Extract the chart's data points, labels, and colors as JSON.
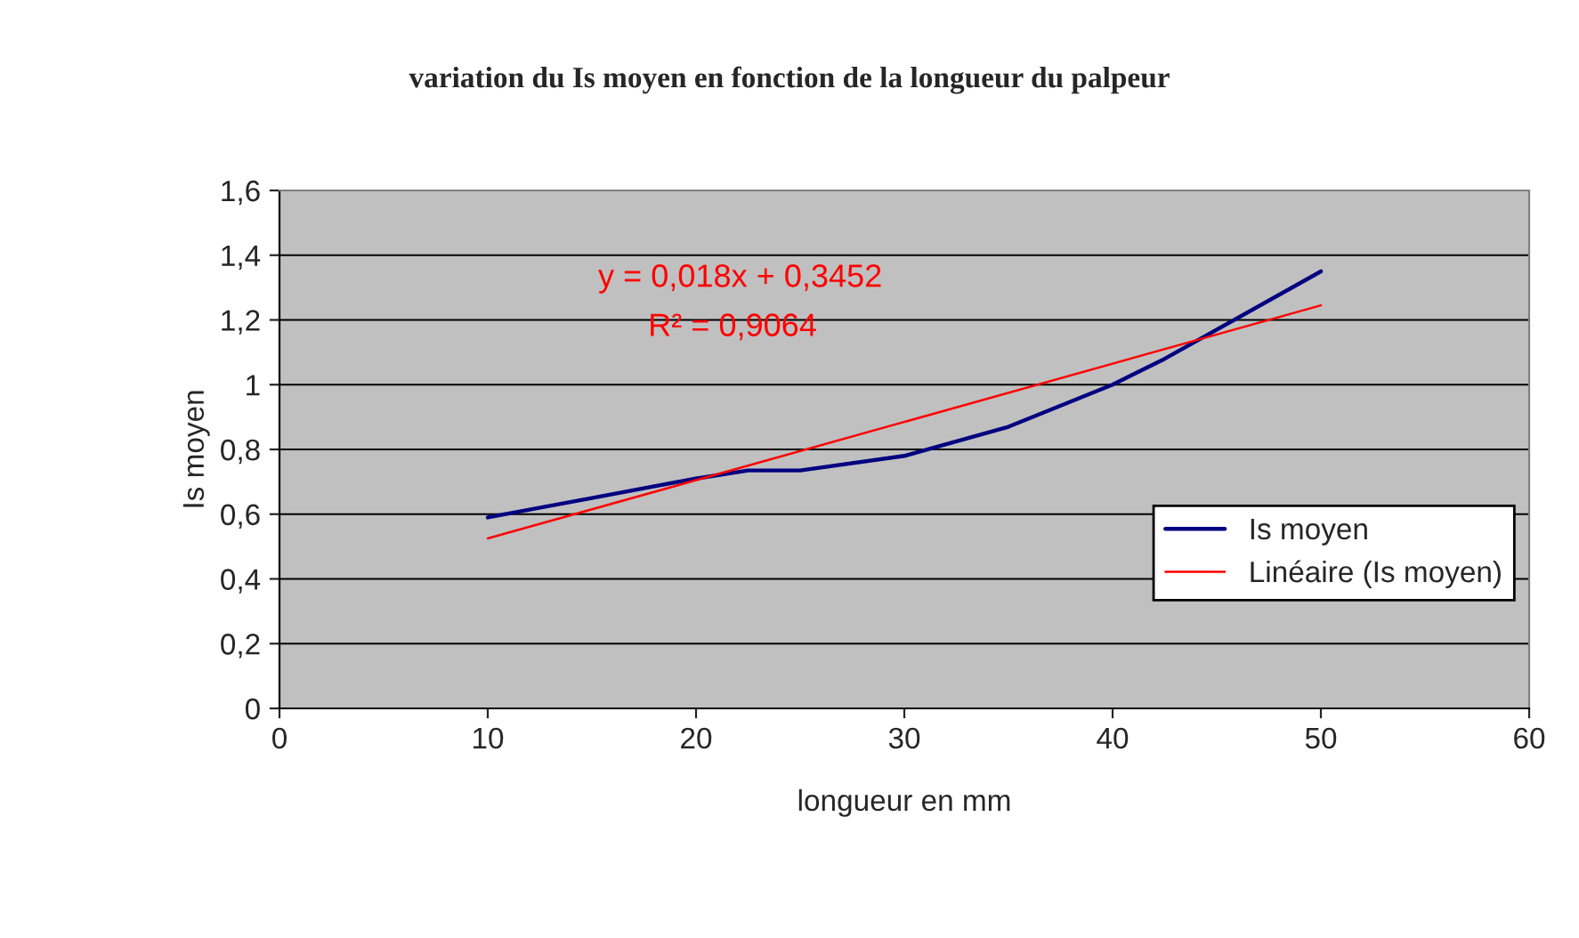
{
  "chart_data": {
    "type": "line",
    "title": "variation du Is moyen en fonction de la longueur du palpeur",
    "xlabel": "longueur en mm",
    "ylabel": "Is moyen",
    "series": [
      {
        "name": "Is moyen",
        "color": "#000080",
        "x": [
          10,
          15,
          20,
          22.5,
          25,
          30,
          35,
          40,
          42.5,
          50
        ],
        "values": [
          0.59,
          0.65,
          0.71,
          0.735,
          0.735,
          0.78,
          0.87,
          1.0,
          1.08,
          1.35
        ]
      },
      {
        "name": "Linéaire (Is moyen)",
        "color": "#ff0000",
        "x": [
          10,
          50
        ],
        "values": [
          0.525,
          1.245
        ]
      }
    ],
    "annotations": [
      "y = 0,018x + 0,3452",
      "R² = 0,9064"
    ],
    "xlim": [
      0,
      60
    ],
    "xticks": [
      0,
      10,
      20,
      30,
      40,
      50,
      60
    ],
    "ylim": [
      0,
      1.6
    ],
    "yticks": [
      {
        "value": 0,
        "label": "0"
      },
      {
        "value": 0.2,
        "label": "0,2"
      },
      {
        "value": 0.4,
        "label": "0,4"
      },
      {
        "value": 0.6,
        "label": "0,6"
      },
      {
        "value": 0.8,
        "label": "0,8"
      },
      {
        "value": 1,
        "label": "1"
      },
      {
        "value": 1.2,
        "label": "1,2"
      },
      {
        "value": 1.4,
        "label": "1,4"
      },
      {
        "value": 1.6,
        "label": "1,6"
      }
    ],
    "grid": "y",
    "legend": "right"
  }
}
